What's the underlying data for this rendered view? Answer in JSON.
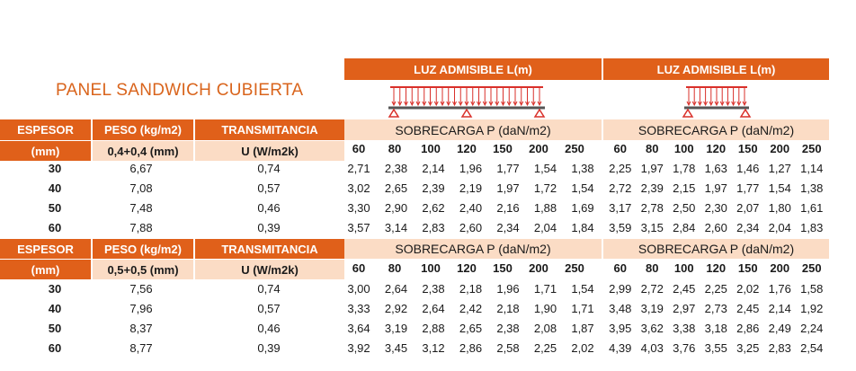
{
  "title": "PANEL SANDWICH CUBIERTA",
  "luz_headers": [
    "LUZ ADMISIBLE L(m)",
    "LUZ ADMISIBLE L(m)"
  ],
  "sobrecarga_label": "SOBRECARGA P (daN/m2)",
  "loads": [
    "60",
    "80",
    "100",
    "120",
    "150",
    "200",
    "250"
  ],
  "colors": {
    "accent": "#e0601a",
    "peach": "#fbdcc5",
    "title": "#d9641c",
    "beam_red": "#d9302a"
  },
  "sections": [
    {
      "h1": [
        "ESPESOR",
        "PESO (kg/m2)",
        "TRANSMITANCIA"
      ],
      "h2": [
        "(mm)",
        "0,4+0,4 (mm)",
        "U (W/m2k)"
      ],
      "rows": [
        {
          "espesor": "30",
          "peso": "6,67",
          "u": "0,74",
          "a": [
            "2,71",
            "2,38",
            "2,14",
            "1,96",
            "1,77",
            "1,54",
            "1,38"
          ],
          "b": [
            "2,25",
            "1,97",
            "1,78",
            "1,63",
            "1,46",
            "1,27",
            "1,14"
          ]
        },
        {
          "espesor": "40",
          "peso": "7,08",
          "u": "0,57",
          "a": [
            "3,02",
            "2,65",
            "2,39",
            "2,19",
            "1,97",
            "1,72",
            "1,54"
          ],
          "b": [
            "2,72",
            "2,39",
            "2,15",
            "1,97",
            "1,77",
            "1,54",
            "1,38"
          ]
        },
        {
          "espesor": "50",
          "peso": "7,48",
          "u": "0,46",
          "a": [
            "3,30",
            "2,90",
            "2,62",
            "2,40",
            "2,16",
            "1,88",
            "1,69"
          ],
          "b": [
            "3,17",
            "2,78",
            "2,50",
            "2,30",
            "2,07",
            "1,80",
            "1,61"
          ]
        },
        {
          "espesor": "60",
          "peso": "7,88",
          "u": "0,39",
          "a": [
            "3,57",
            "3,14",
            "2,83",
            "2,60",
            "2,34",
            "2,04",
            "1,84"
          ],
          "b": [
            "3,59",
            "3,15",
            "2,84",
            "2,60",
            "2,34",
            "2,04",
            "1,83"
          ]
        }
      ]
    },
    {
      "h1": [
        "ESPESOR",
        "PESO (kg/m2)",
        "TRANSMITANCIA"
      ],
      "h2": [
        "(mm)",
        "0,5+0,5 (mm)",
        "U (W/m2k)"
      ],
      "rows": [
        {
          "espesor": "30",
          "peso": "7,56",
          "u": "0,74",
          "a": [
            "3,00",
            "2,64",
            "2,38",
            "2,18",
            "1,96",
            "1,71",
            "1,54"
          ],
          "b": [
            "2,99",
            "2,72",
            "2,45",
            "2,25",
            "2,02",
            "1,76",
            "1,58"
          ]
        },
        {
          "espesor": "40",
          "peso": "7,96",
          "u": "0,57",
          "a": [
            "3,33",
            "2,92",
            "2,64",
            "2,42",
            "2,18",
            "1,90",
            "1,71"
          ],
          "b": [
            "3,48",
            "3,19",
            "2,97",
            "2,73",
            "2,45",
            "2,14",
            "1,92"
          ]
        },
        {
          "espesor": "50",
          "peso": "8,37",
          "u": "0,46",
          "a": [
            "3,64",
            "3,19",
            "2,88",
            "2,65",
            "2,38",
            "2,08",
            "1,87"
          ],
          "b": [
            "3,95",
            "3,62",
            "3,38",
            "3,18",
            "2,86",
            "2,49",
            "2,24"
          ]
        },
        {
          "espesor": "60",
          "peso": "8,77",
          "u": "0,39",
          "a": [
            "3,92",
            "3,45",
            "3,12",
            "2,86",
            "2,58",
            "2,25",
            "2,02"
          ],
          "b": [
            "4,39",
            "4,03",
            "3,76",
            "3,55",
            "3,25",
            "2,83",
            "2,54"
          ]
        }
      ]
    }
  ]
}
